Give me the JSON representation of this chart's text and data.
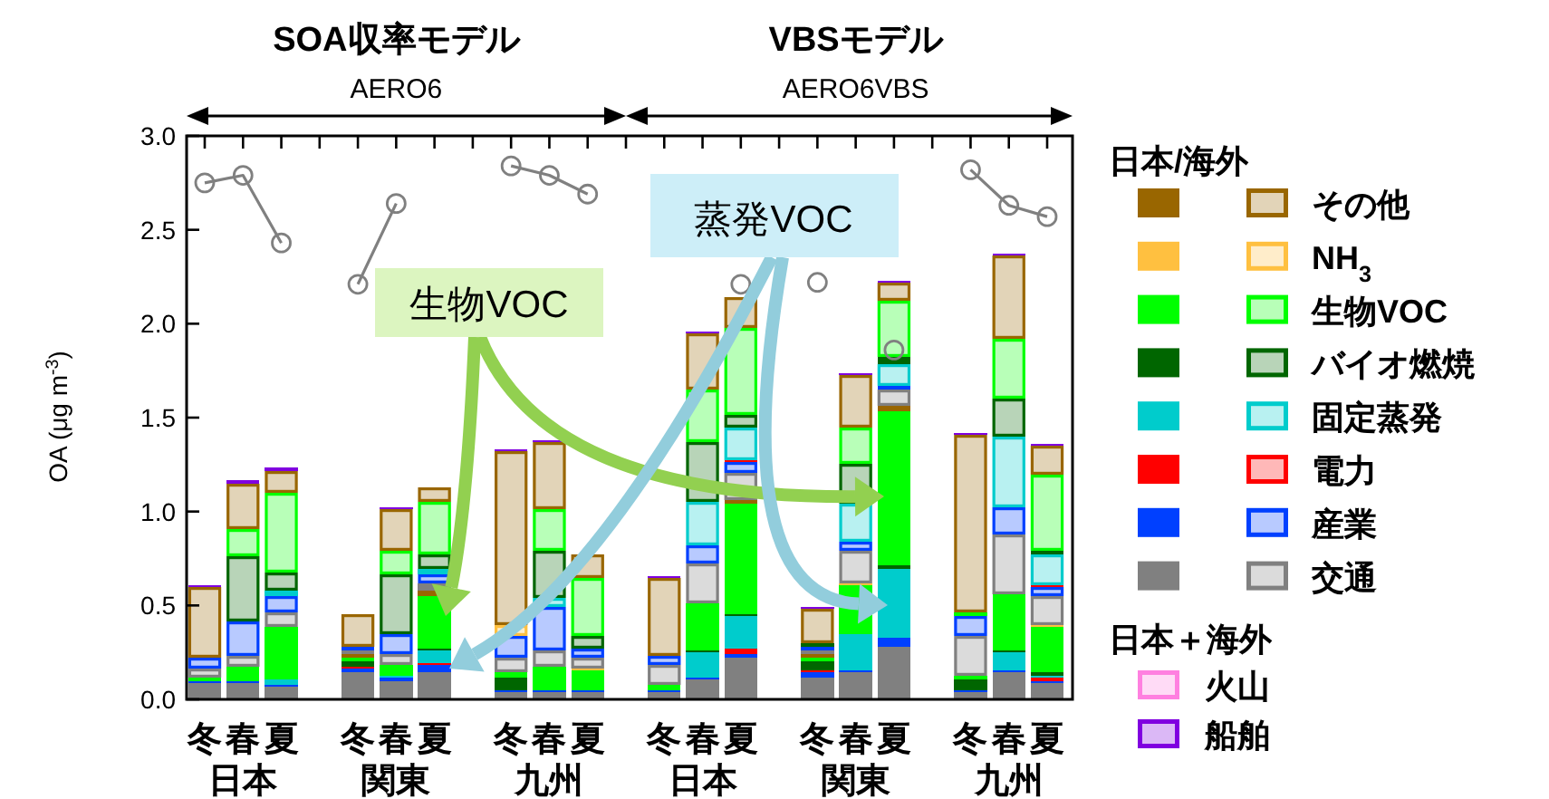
{
  "chart_data": {
    "type": "bar",
    "stacked": true,
    "ylabel": "OA (μg m$^{-3}$)",
    "ylim": [
      0,
      3
    ],
    "yticks": [
      {
        "value": 0,
        "label": "0.0"
      },
      {
        "value": 0.5,
        "label": "0.5"
      },
      {
        "value": 1,
        "label": "1.0"
      },
      {
        "value": 1.5,
        "label": "1.5"
      },
      {
        "value": 2,
        "label": "2.0"
      },
      {
        "value": 2.5,
        "label": "2.5"
      },
      {
        "value": 3,
        "label": "3.0"
      }
    ],
    "categories": [
      "冬",
      "春",
      "夏",
      null,
      "冬",
      "春",
      "夏",
      null,
      "冬",
      "春",
      "夏",
      null,
      "冬",
      "春",
      "夏",
      null,
      "冬",
      "春",
      "夏",
      null,
      "冬",
      "春",
      "夏"
    ],
    "legend": "right",
    "legend_title": "日本/海外",
    "annotations": [
      "SOA収率モデル",
      "AERO6",
      "VBSモデル",
      "AERO6VBS",
      "日本",
      "関東",
      "九州",
      "日本",
      "関東",
      "九州",
      "日本＋海外",
      "生物VOC",
      "蒸発VOC"
    ],
    "series": [
      {
        "color": "#808080",
        "values": [
          0.09,
          0.09,
          0.07,
          null,
          0.14,
          0.1,
          0.14,
          null,
          0.04,
          0.04,
          0.04,
          null,
          0.04,
          0.11,
          0.22,
          null,
          0.12,
          0.14,
          0.28,
          null,
          0.04,
          0.14,
          0.09
        ]
      },
      {
        "color": "#0040ff",
        "values": [
          0.01,
          0.01,
          0.01,
          null,
          0.02,
          0.02,
          0.04,
          null,
          0.01,
          0.01,
          0.01,
          null,
          0.01,
          0.01,
          0.02,
          null,
          0.02,
          0.01,
          0.05,
          null,
          0.01,
          0.01,
          0.01
        ]
      },
      {
        "color": "#ff0000",
        "values": [
          0,
          0,
          0,
          null,
          0.01,
          0,
          0.01,
          null,
          0,
          0,
          0,
          null,
          0,
          0,
          0.03,
          null,
          0.01,
          0,
          0,
          null,
          0,
          0,
          0.02
        ]
      },
      {
        "color": "#00cccc",
        "values": [
          0,
          0,
          0.03,
          null,
          0,
          0.01,
          0.07,
          null,
          0,
          0,
          0,
          null,
          0,
          0.13,
          0.17,
          null,
          0,
          0.2,
          0.36,
          null,
          0,
          0.1,
          0.01
        ]
      },
      {
        "color": "#006600",
        "values": [
          0,
          0,
          0,
          null,
          0.03,
          0,
          0.01,
          null,
          0.07,
          0,
          0,
          null,
          0,
          0.01,
          0.01,
          null,
          0.05,
          0,
          0.02,
          null,
          0.06,
          0.01,
          0.01
        ]
      },
      {
        "color": "#00ff00",
        "values": [
          0.02,
          0.07,
          0.28,
          null,
          0.02,
          0.05,
          0.28,
          null,
          0.02,
          0.12,
          0.1,
          null,
          0.03,
          0.25,
          0.59,
          null,
          0.02,
          0.26,
          0.82,
          null,
          0.02,
          0.3,
          0.25
        ]
      },
      {
        "color": "#ffc040",
        "values": [
          0,
          0,
          0,
          null,
          0,
          0,
          0,
          null,
          0,
          0,
          0.01,
          null,
          0,
          0,
          0,
          null,
          0,
          0.01,
          0,
          null,
          0,
          0,
          0.01
        ]
      },
      {
        "color": "#996600",
        "values": [
          0,
          0,
          0,
          null,
          0.02,
          0,
          0.03,
          null,
          0,
          0,
          0,
          null,
          0,
          0,
          0.02,
          null,
          0.02,
          0,
          0.03,
          null,
          0,
          0,
          0
        ]
      },
      {
        "name": "交通",
        "color": "#808080",
        "values": [
          0.04,
          0.06,
          0.07,
          null,
          0.02,
          0.06,
          0.04,
          null,
          0.08,
          0.09,
          0.06,
          null,
          0.1,
          0.21,
          0.15,
          null,
          0.02,
          0.17,
          0.09,
          null,
          0.21,
          0.32,
          0.15
        ]
      },
      {
        "name": "産業",
        "color": "#0040ff",
        "values": [
          0.06,
          0.18,
          0.09,
          null,
          0.02,
          0.11,
          0.05,
          null,
          0.12,
          0.23,
          0.05,
          null,
          0.05,
          0.1,
          0.05,
          null,
          0.02,
          0.05,
          0.02,
          null,
          0.1,
          0.14,
          0.05
        ]
      },
      {
        "name": "電力",
        "color": "#ff0000",
        "values": [
          0,
          0,
          0,
          null,
          0,
          0,
          0,
          null,
          0,
          0,
          0,
          null,
          0,
          0,
          0.01,
          null,
          0,
          0,
          0,
          null,
          0,
          0,
          0.01
        ]
      },
      {
        "name": "固定蒸発",
        "color": "#00cccc",
        "values": [
          0,
          0,
          0.03,
          null,
          0,
          0,
          0.02,
          null,
          0,
          0.05,
          0,
          null,
          0,
          0.23,
          0.18,
          null,
          0,
          0.2,
          0.11,
          null,
          0,
          0.38,
          0.16
        ]
      },
      {
        "name": "バイオ燃焼",
        "color": "#006600",
        "values": [
          0,
          0.35,
          0.1,
          null,
          0,
          0.32,
          0.08,
          null,
          0,
          0.25,
          0.07,
          null,
          0,
          0.32,
          0.06,
          null,
          0.02,
          0.21,
          0.04,
          null,
          0,
          0.2,
          0.02
        ]
      },
      {
        "name": "生物VOC",
        "color": "#00ff00",
        "values": [
          0,
          0.15,
          0.42,
          null,
          0,
          0.12,
          0.28,
          null,
          0,
          0.22,
          0.31,
          null,
          0,
          0.28,
          0.47,
          null,
          0,
          0.2,
          0.3,
          null,
          0.02,
          0.32,
          0.41
        ]
      },
      {
        "name": "NH$_{3}$",
        "color": "#ffc040",
        "values": [
          0,
          0,
          0,
          null,
          0,
          0,
          0,
          null,
          0.06,
          0,
          0,
          null,
          0,
          0,
          0,
          null,
          0,
          0,
          0,
          null,
          0,
          0,
          0
        ]
      },
      {
        "name": "その他",
        "color": "#996600",
        "values": [
          0.38,
          0.24,
          0.12,
          null,
          0.17,
          0.22,
          0.08,
          null,
          0.92,
          0.36,
          0.12,
          null,
          0.42,
          0.3,
          0.16,
          null,
          0.18,
          0.28,
          0.1,
          null,
          0.95,
          0.44,
          0.15
        ]
      },
      {
        "name": "火山",
        "color": "#ff80e0",
        "values": [
          0,
          0,
          0,
          null,
          0,
          0,
          0,
          null,
          0,
          0,
          0,
          null,
          0,
          0,
          0,
          null,
          0,
          0,
          0,
          null,
          0,
          0,
          0
        ]
      },
      {
        "name": "船舶",
        "color": "#8000e0",
        "values": [
          0.01,
          0.02,
          0.01,
          null,
          0,
          0.01,
          0,
          null,
          0.01,
          0.01,
          0,
          null,
          0.01,
          0.01,
          0,
          null,
          0.01,
          0.01,
          0.01,
          null,
          0.01,
          0.01,
          0.01
        ]
      },
      {
        "type": "line",
        "color": "#808080",
        "marker": "circle",
        "values": [
          2.75,
          2.79,
          2.43,
          null,
          2.21,
          2.64,
          null,
          null,
          2.84,
          2.79,
          2.69,
          null,
          null,
          null,
          2.21,
          null,
          2.22,
          null,
          1.86,
          null,
          2.82,
          2.63,
          2.57
        ]
      }
    ]
  }
}
